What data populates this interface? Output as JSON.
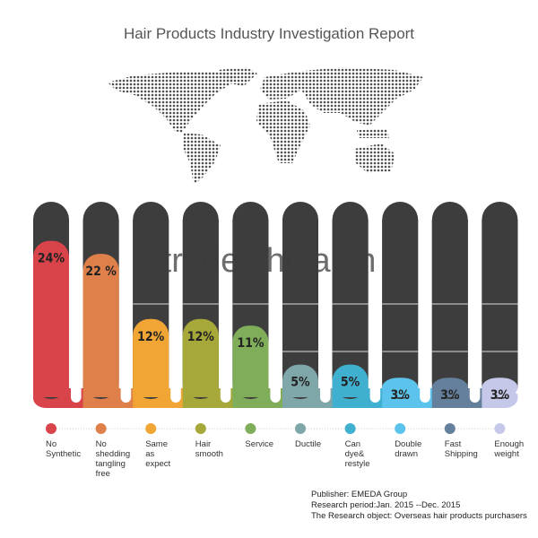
{
  "chart_data": {
    "type": "bar",
    "title": "Hair Products Industry Investigation Report",
    "categories": [
      "No Synthetic",
      "No shedding tangling free",
      "Same as expect",
      "Hair smooth",
      "Service",
      "Ductile",
      "Can dye& restyle",
      "Double drawn",
      "Fast Shipping",
      "Enough weight"
    ],
    "label_lines": [
      [
        "No",
        "Synthetic"
      ],
      [
        "No",
        "shedding",
        "tangling",
        "free"
      ],
      [
        "Same",
        "as",
        "expect"
      ],
      [
        "Hair",
        "smooth"
      ],
      [
        "Service"
      ],
      [
        "Ductile"
      ],
      [
        "Can",
        "dye&",
        "restyle"
      ],
      [
        "Double",
        "drawn"
      ],
      [
        "Fast",
        "Shipping"
      ],
      [
        "Enough",
        "weight"
      ]
    ],
    "values": [
      24,
      22,
      12,
      12,
      11,
      5,
      5,
      3,
      3,
      3
    ],
    "value_labels": [
      "24%",
      "22 %",
      "12%",
      "12%",
      "11%",
      "5%",
      "5%",
      "3%",
      "3%",
      "3%"
    ],
    "unit": "%",
    "ylim": [
      0,
      30
    ],
    "colors": [
      "#d9434a",
      "#df7f4a",
      "#f0a535",
      "#a6a83a",
      "#7fad5a",
      "#7fa6a8",
      "#3fb0d0",
      "#5cc4ec",
      "#64809c",
      "#c5c8e8"
    ],
    "track_color": "#3d3d3d",
    "grid": false,
    "legend": "bottom"
  },
  "publisher": {
    "line1": "Publisher:  EMEDA Group",
    "line2": "Research period:Jan. 2015 --Dec. 2015",
    "line3": "The Research object: Overseas hair products purchasers"
  },
  "watermark": "trade.china.cn",
  "map_icon": "dotted-world-map"
}
